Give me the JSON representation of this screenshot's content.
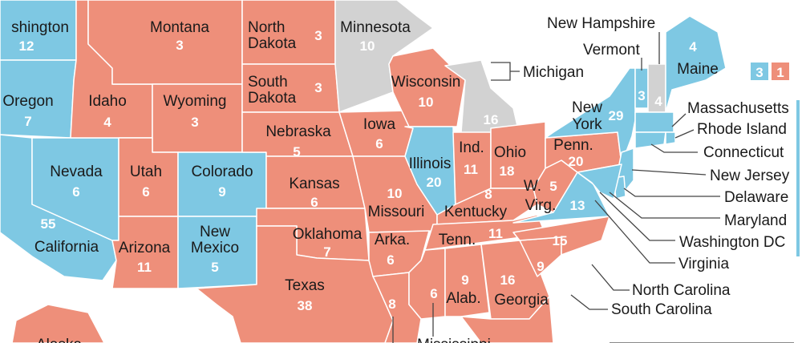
{
  "colors": {
    "republican": "#EE8F7A",
    "democrat": "#7EC8E3",
    "undecided": "#D2D2D2",
    "border": "#ffffff"
  },
  "states": {
    "washington": {
      "name": "shington",
      "votes": "12",
      "party": "democrat"
    },
    "oregon": {
      "name": "Oregon",
      "votes": "7",
      "party": "democrat"
    },
    "california": {
      "name": "California",
      "votes": "55",
      "party": "democrat"
    },
    "nevada": {
      "name": "Nevada",
      "votes": "6",
      "party": "democrat"
    },
    "idaho": {
      "name": "Idaho",
      "votes": "4",
      "party": "republican"
    },
    "montana": {
      "name": "Montana",
      "votes": "3",
      "party": "republican"
    },
    "wyoming": {
      "name": "Wyoming",
      "votes": "3",
      "party": "republican"
    },
    "utah": {
      "name": "Utah",
      "votes": "6",
      "party": "republican"
    },
    "colorado": {
      "name": "Colorado",
      "votes": "9",
      "party": "democrat"
    },
    "arizona": {
      "name": "Arizona",
      "votes": "11",
      "party": "republican"
    },
    "new_mexico": {
      "name_line1": "New",
      "name_line2": "Mexico",
      "votes": "5",
      "party": "democrat"
    },
    "north_dakota": {
      "name_line1": "North",
      "name_line2": "Dakota",
      "votes": "3",
      "party": "republican"
    },
    "south_dakota": {
      "name_line1": "South",
      "name_line2": "Dakota",
      "votes": "3",
      "party": "republican"
    },
    "nebraska": {
      "name": "Nebraska",
      "votes": "5",
      "party": "republican"
    },
    "kansas": {
      "name": "Kansas",
      "votes": "6",
      "party": "republican"
    },
    "oklahoma": {
      "name": "Oklahoma",
      "votes": "7",
      "party": "republican"
    },
    "texas": {
      "name": "Texas",
      "votes": "38",
      "party": "republican"
    },
    "minnesota": {
      "name": "Minnesota",
      "votes": "10",
      "party": "undecided"
    },
    "iowa": {
      "name": "Iowa",
      "votes": "6",
      "party": "republican"
    },
    "missouri": {
      "name": "Missouri",
      "votes": "10",
      "party": "republican"
    },
    "arkansas": {
      "name": "Arka.",
      "votes": "6",
      "party": "republican"
    },
    "louisiana": {
      "votes": "8",
      "party": "republican"
    },
    "wisconsin": {
      "name": "Wisconsin",
      "votes": "10",
      "party": "republican"
    },
    "illinois": {
      "name": "Illinois",
      "votes": "20",
      "party": "democrat"
    },
    "michigan": {
      "name": "Michigan",
      "votes": "16",
      "party": "undecided"
    },
    "indiana": {
      "name": "Ind.",
      "votes": "11",
      "party": "republican"
    },
    "ohio": {
      "name": "Ohio",
      "votes": "18",
      "party": "republican"
    },
    "kentucky": {
      "name": "Kentucky",
      "votes": "8",
      "party": "republican"
    },
    "tennessee": {
      "name": "Tenn.",
      "votes": "11",
      "party": "republican"
    },
    "mississippi": {
      "name": "Mississippi",
      "votes": "6",
      "party": "republican"
    },
    "alabama": {
      "name": "Alab.",
      "votes": "9",
      "party": "republican"
    },
    "georgia": {
      "name": "Georgia",
      "votes": "16",
      "party": "republican"
    },
    "florida": {
      "party": "republican"
    },
    "south_carolina": {
      "name": "South Carolina",
      "votes": "9",
      "party": "republican"
    },
    "north_carolina": {
      "name": "North Carolina",
      "votes": "15",
      "party": "republican"
    },
    "virginia": {
      "name": "Virginia",
      "votes": "13",
      "party": "democrat"
    },
    "west_virginia": {
      "name_line1": "W.",
      "name_line2": "Virg.",
      "votes": "5",
      "party": "republican"
    },
    "pennsylvania": {
      "name": "Penn.",
      "votes": "20",
      "party": "republican"
    },
    "new_york": {
      "name_line1": "New",
      "name_line2": "York",
      "votes": "29",
      "party": "democrat"
    },
    "vermont": {
      "name": "Vermont",
      "votes": "3",
      "party": "democrat"
    },
    "new_hampshire": {
      "name": "New Hampshire",
      "votes": "4",
      "party": "undecided"
    },
    "maine": {
      "name": "Maine",
      "votes": "4",
      "party": "democrat"
    },
    "maine_split": {
      "dem": "3",
      "rep": "1"
    },
    "massachusetts": {
      "name": "Massachusetts",
      "party": "democrat"
    },
    "rhode_island": {
      "name": "Rhode Island",
      "party": "democrat"
    },
    "connecticut": {
      "name": "Connecticut",
      "party": "democrat"
    },
    "new_jersey": {
      "name": "New Jersey",
      "party": "democrat"
    },
    "delaware": {
      "name": "Delaware",
      "party": "democrat"
    },
    "maryland": {
      "name": "Maryland",
      "party": "democrat"
    },
    "washington_dc": {
      "name": "Washington DC",
      "party": "democrat"
    },
    "alaska": {
      "name": "Alaska",
      "party": "republican"
    }
  }
}
